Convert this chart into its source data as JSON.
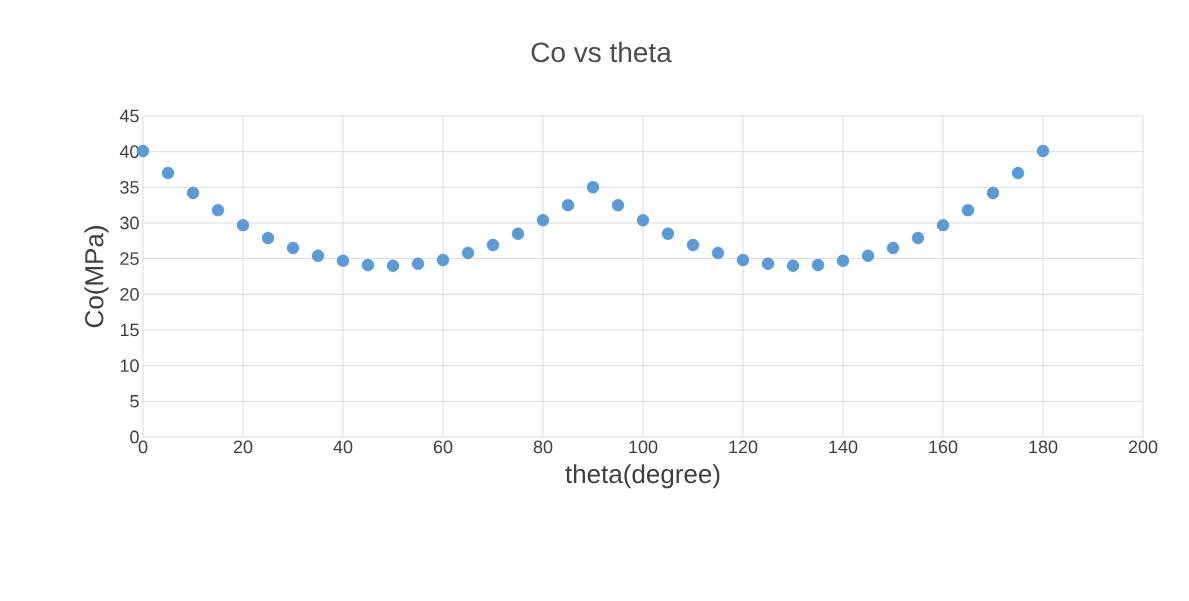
{
  "chart_data": {
    "type": "scatter",
    "title": "Co vs theta",
    "xlabel": "theta(degree)",
    "ylabel": "Co(MPa)",
    "x": [
      0,
      5,
      10,
      15,
      20,
      25,
      30,
      35,
      40,
      45,
      50,
      55,
      60,
      65,
      70,
      75,
      80,
      85,
      90,
      95,
      100,
      105,
      110,
      115,
      120,
      125,
      130,
      135,
      140,
      145,
      150,
      155,
      160,
      165,
      170,
      175,
      180
    ],
    "values": [
      40.1,
      37.0,
      34.2,
      31.8,
      29.7,
      27.9,
      26.5,
      25.4,
      24.7,
      24.1,
      24.0,
      24.3,
      24.8,
      25.8,
      26.9,
      28.5,
      30.4,
      32.5,
      35.0,
      32.5,
      30.4,
      28.5,
      26.9,
      25.8,
      24.8,
      24.3,
      24.0,
      24.1,
      24.7,
      25.4,
      26.5,
      27.9,
      29.7,
      31.8,
      34.2,
      37.0,
      40.1
    ],
    "color": "#5b9bd5",
    "grid": true,
    "xlim": [
      0,
      200
    ],
    "xticks": [
      0,
      20,
      40,
      60,
      80,
      100,
      120,
      140,
      160,
      180,
      200
    ],
    "ylim": [
      0,
      45
    ],
    "yticks": [
      0,
      5,
      10,
      15,
      20,
      25,
      30,
      35,
      40,
      45
    ]
  }
}
